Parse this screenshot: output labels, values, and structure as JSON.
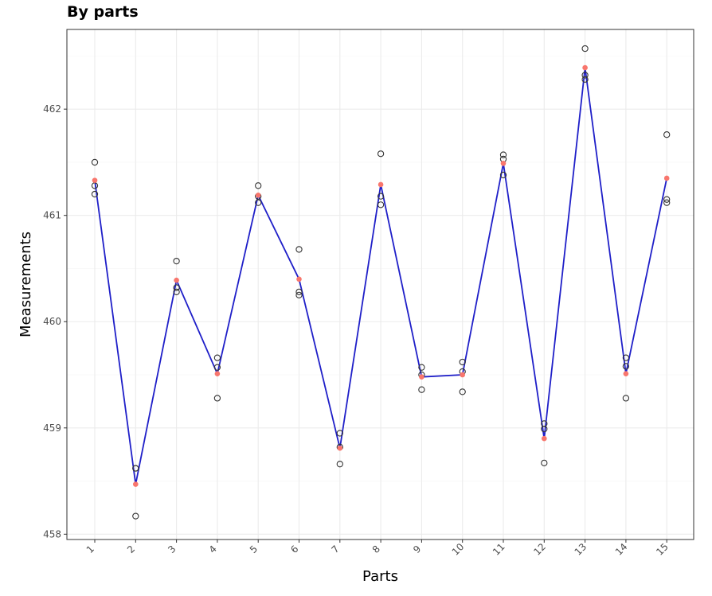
{
  "chart_data": {
    "type": "scatter",
    "title": "By parts",
    "xlabel": "Parts",
    "ylabel": "Measurements",
    "categories": [
      "1",
      "2",
      "3",
      "4",
      "5",
      "6",
      "7",
      "8",
      "9",
      "10",
      "11",
      "12",
      "13",
      "14",
      "15"
    ],
    "y_ticks": [
      458,
      459,
      460,
      461,
      462
    ],
    "ylim": [
      457.95,
      462.75
    ],
    "grid": true,
    "colors": {
      "line": "#1f1fc8",
      "mean_point": "#f8766d",
      "observation": "#333333"
    },
    "series": [
      {
        "kind": "observations",
        "points": [
          [
            461.5,
            461.28,
            461.2
          ],
          [
            458.62,
            458.62,
            458.17
          ],
          [
            460.57,
            460.32,
            460.28
          ],
          [
            459.66,
            459.57,
            459.28
          ],
          [
            461.28,
            461.18,
            461.12
          ],
          [
            460.68,
            460.28,
            460.25
          ],
          [
            458.95,
            458.82,
            458.66
          ],
          [
            461.58,
            461.18,
            461.1
          ],
          [
            459.57,
            459.5,
            459.36
          ],
          [
            459.62,
            459.53,
            459.34
          ],
          [
            461.57,
            461.53,
            461.38
          ],
          [
            459.04,
            458.99,
            458.67
          ],
          [
            462.57,
            462.32,
            462.28
          ],
          [
            459.66,
            459.58,
            459.28
          ],
          [
            461.76,
            461.15,
            461.12
          ]
        ]
      },
      {
        "kind": "mean",
        "values": [
          461.33,
          458.47,
          460.39,
          459.51,
          461.19,
          460.4,
          458.81,
          461.29,
          459.48,
          459.5,
          461.49,
          458.9,
          462.39,
          459.51,
          461.35
        ]
      }
    ]
  }
}
